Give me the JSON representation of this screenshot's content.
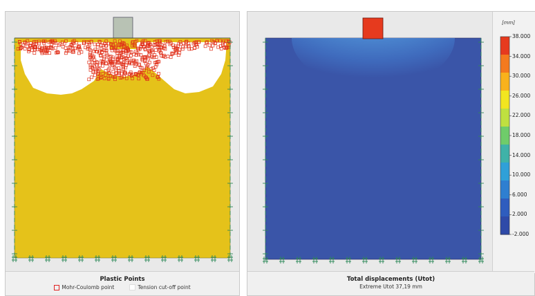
{
  "left_panel": {
    "title": "Plastic Points",
    "legend": [
      {
        "label": "Mohr-Coulomb point",
        "color": "#e02020"
      },
      {
        "label": "Tension cut-off point",
        "color": "#ffffff"
      }
    ],
    "colors": {
      "soil": "#e5c21a",
      "footing": "#b8c2b4",
      "mohr": "#e0301a",
      "tension": "#ffffff"
    }
  },
  "right_panel": {
    "title": "Total displacements (Utot)",
    "subtitle": "Extreme Utot 37,19 mm",
    "colorbar": {
      "unit": "[mm]",
      "ticks": [
        "38.000",
        "34.000",
        "30.000",
        "26.000",
        "22.000",
        "18.000",
        "14.000",
        "10.000",
        "6.000",
        "2.000",
        "-2.000"
      ],
      "colors": [
        "#e63a1e",
        "#f47a1e",
        "#f9b21c",
        "#f2e620",
        "#bfe040",
        "#6fcc6a",
        "#3fb2a8",
        "#30a0d8",
        "#2f7fd0",
        "#2f5dbe",
        "#2f4aa8"
      ]
    },
    "colors": {
      "soil": "#3a55a8",
      "footing": "#e63a1e"
    }
  }
}
